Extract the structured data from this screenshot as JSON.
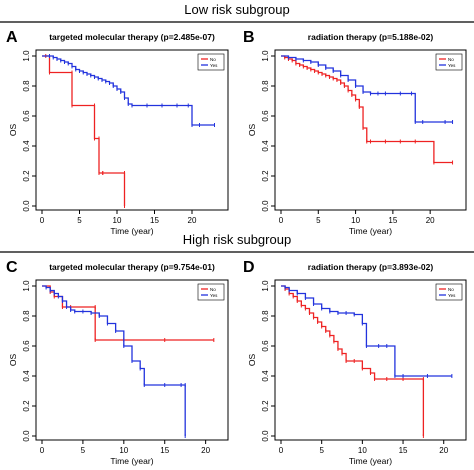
{
  "figure": {
    "low_title": "Low risk subgroup",
    "high_title": "High risk subgroup"
  },
  "colors": {
    "no": "#ee2222",
    "yes": "#2233dd"
  },
  "chart_data": [
    {
      "panel_label": "A",
      "type": "line",
      "title": "targeted molecular therapy (p=2.485e-07)",
      "xlabel": "Time (year)",
      "ylabel": "OS",
      "xlim": [
        0,
        24
      ],
      "ylim": [
        0,
        1
      ],
      "xticks": [
        0,
        5,
        10,
        15,
        20
      ],
      "yticks": [
        0.0,
        0.2,
        0.4,
        0.6,
        0.8,
        1.0
      ],
      "legend": [
        "No",
        "Yes"
      ],
      "legend_position": "top-right",
      "series": [
        {
          "name": "No",
          "color": "#ee2222",
          "x": [
            0,
            0.5,
            1,
            4,
            4,
            7,
            7,
            7.6,
            7.6,
            8.1,
            8.1,
            11,
            11
          ],
          "y": [
            1.0,
            1.0,
            0.89,
            0.89,
            0.67,
            0.67,
            0.45,
            0.45,
            0.22,
            0.22,
            0.22,
            0.22,
            0.0
          ]
        },
        {
          "name": "Yes",
          "color": "#2233dd",
          "x": [
            0,
            1,
            1.5,
            2,
            2.5,
            3,
            3.5,
            4,
            4.5,
            5,
            5.5,
            6,
            6.5,
            7,
            7.5,
            8,
            8.5,
            9,
            9.5,
            10,
            10.5,
            11,
            11.5,
            12,
            14,
            16,
            18,
            19.5,
            20,
            21,
            23
          ],
          "y": [
            1.0,
            1.0,
            0.99,
            0.98,
            0.97,
            0.96,
            0.95,
            0.93,
            0.91,
            0.9,
            0.89,
            0.88,
            0.87,
            0.86,
            0.85,
            0.84,
            0.83,
            0.82,
            0.8,
            0.78,
            0.76,
            0.72,
            0.68,
            0.67,
            0.67,
            0.67,
            0.67,
            0.67,
            0.54,
            0.54,
            0.54
          ]
        }
      ]
    },
    {
      "panel_label": "B",
      "type": "line",
      "title": "radiation therapy (p=5.188e-02)",
      "xlabel": "Time (year)",
      "ylabel": "OS",
      "xlim": [
        0,
        24
      ],
      "ylim": [
        0,
        1
      ],
      "xticks": [
        0,
        5,
        10,
        15,
        20
      ],
      "yticks": [
        0.0,
        0.2,
        0.4,
        0.6,
        0.8,
        1.0
      ],
      "legend": [
        "No",
        "Yes"
      ],
      "legend_position": "top-right",
      "series": [
        {
          "name": "No",
          "color": "#ee2222",
          "x": [
            0,
            0.5,
            1,
            1.5,
            2,
            2.5,
            3,
            3.5,
            4,
            4.5,
            5,
            5.5,
            6,
            6.5,
            7,
            7.5,
            8,
            8.5,
            9,
            9.5,
            10,
            10.5,
            11,
            11.5,
            12,
            14,
            16,
            18,
            20.5,
            23
          ],
          "y": [
            1.0,
            0.99,
            0.98,
            0.97,
            0.95,
            0.94,
            0.93,
            0.92,
            0.91,
            0.9,
            0.89,
            0.88,
            0.87,
            0.86,
            0.85,
            0.84,
            0.82,
            0.8,
            0.77,
            0.74,
            0.71,
            0.66,
            0.52,
            0.43,
            0.43,
            0.43,
            0.43,
            0.43,
            0.29,
            0.29
          ]
        },
        {
          "name": "Yes",
          "color": "#2233dd",
          "x": [
            0,
            1,
            2,
            3,
            4,
            5,
            6,
            7,
            8,
            9,
            10,
            11,
            12,
            13,
            14,
            16,
            17.5,
            18,
            19,
            22,
            23
          ],
          "y": [
            1.0,
            0.99,
            0.98,
            0.97,
            0.96,
            0.94,
            0.92,
            0.9,
            0.87,
            0.84,
            0.8,
            0.76,
            0.75,
            0.75,
            0.75,
            0.75,
            0.75,
            0.56,
            0.56,
            0.56,
            0.56
          ]
        }
      ]
    },
    {
      "panel_label": "C",
      "type": "line",
      "title": "targeted molecular therapy (p=9.754e-01)",
      "xlabel": "Time (year)",
      "ylabel": "OS",
      "xlim": [
        0,
        22
      ],
      "ylim": [
        0,
        1
      ],
      "xticks": [
        0,
        5,
        10,
        15,
        20
      ],
      "yticks": [
        0.0,
        0.2,
        0.4,
        0.6,
        0.8,
        1.0
      ],
      "legend": [
        "No",
        "Yes"
      ],
      "legend_position": "top-right",
      "series": [
        {
          "name": "No",
          "color": "#ee2222",
          "x": [
            0,
            1,
            1.5,
            2.5,
            3.5,
            6.5,
            6.5,
            10,
            15,
            21
          ],
          "y": [
            1.0,
            0.96,
            0.93,
            0.86,
            0.86,
            0.86,
            0.64,
            0.64,
            0.64,
            0.64
          ]
        },
        {
          "name": "Yes",
          "color": "#2233dd",
          "x": [
            0,
            0.5,
            1,
            1.5,
            2,
            2.5,
            3,
            3.5,
            4,
            5,
            6,
            7,
            8,
            9,
            10,
            11,
            12,
            12.5,
            15,
            17,
            17.5,
            17.5
          ],
          "y": [
            1.0,
            0.99,
            0.97,
            0.95,
            0.93,
            0.9,
            0.86,
            0.84,
            0.83,
            0.83,
            0.82,
            0.8,
            0.75,
            0.7,
            0.6,
            0.5,
            0.45,
            0.34,
            0.34,
            0.34,
            0.34,
            0.0
          ]
        }
      ]
    },
    {
      "panel_label": "D",
      "type": "line",
      "title": "radiation therapy (p=3.893e-02)",
      "xlabel": "Time (year)",
      "ylabel": "OS",
      "xlim": [
        0,
        22
      ],
      "ylim": [
        0,
        1
      ],
      "xticks": [
        0,
        5,
        10,
        15,
        20
      ],
      "yticks": [
        0.0,
        0.2,
        0.4,
        0.6,
        0.8,
        1.0
      ],
      "legend": [
        "No",
        "Yes"
      ],
      "legend_position": "top-right",
      "series": [
        {
          "name": "No",
          "color": "#ee2222",
          "x": [
            0,
            0.5,
            1,
            1.5,
            2,
            2.5,
            3,
            3.5,
            4,
            4.5,
            5,
            5.5,
            6,
            6.5,
            7,
            7.5,
            8,
            9,
            10,
            11,
            11.5,
            13,
            15,
            17.5,
            17.5
          ],
          "y": [
            1.0,
            0.98,
            0.95,
            0.93,
            0.9,
            0.87,
            0.85,
            0.82,
            0.79,
            0.76,
            0.73,
            0.7,
            0.67,
            0.63,
            0.58,
            0.55,
            0.5,
            0.5,
            0.45,
            0.42,
            0.38,
            0.38,
            0.38,
            0.38,
            0.0
          ]
        },
        {
          "name": "Yes",
          "color": "#2233dd",
          "x": [
            0,
            0.5,
            1,
            2,
            3,
            4,
            5,
            6,
            7,
            8,
            9,
            10,
            10.5,
            12,
            13,
            14,
            15,
            18,
            21
          ],
          "y": [
            1.0,
            0.99,
            0.97,
            0.95,
            0.92,
            0.88,
            0.85,
            0.83,
            0.82,
            0.82,
            0.81,
            0.75,
            0.6,
            0.6,
            0.6,
            0.4,
            0.4,
            0.4,
            0.4
          ]
        }
      ]
    }
  ]
}
